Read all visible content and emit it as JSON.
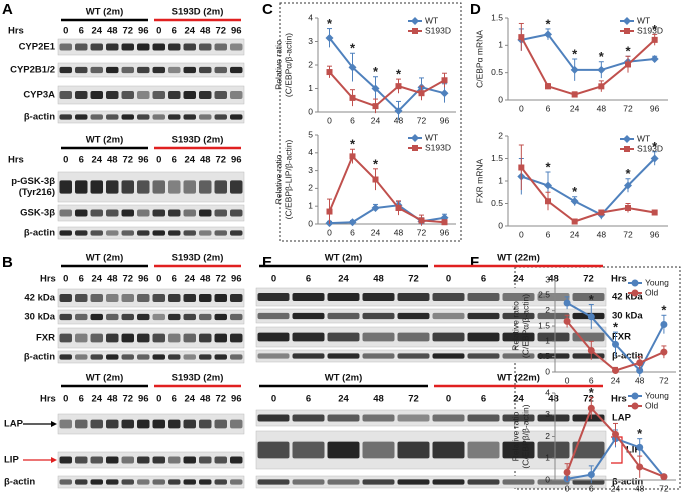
{
  "chart_data": [
    {
      "type": "line",
      "panel": "C",
      "ylabel": [
        "Relative ratio",
        "(C/EBPα/β-actin)"
      ],
      "categories": [
        "0",
        "6",
        "24",
        "48",
        "72",
        "96"
      ],
      "series": [
        {
          "name": "WT",
          "color": "#4f81bd",
          "marker": "diamond",
          "values": [
            3.15,
            1.9,
            1.0,
            0.05,
            1.05,
            0.8
          ],
          "errors": [
            0.4,
            0.6,
            0.5,
            0.4,
            0.4,
            0.4
          ]
        },
        {
          "name": "S193D",
          "color": "#c0504d",
          "marker": "square",
          "values": [
            1.7,
            0.6,
            0.25,
            1.1,
            0.8,
            1.35
          ],
          "errors": [
            0.25,
            0.35,
            0.3,
            0.3,
            0.3,
            0.3
          ]
        }
      ],
      "ylim": [
        0,
        4
      ],
      "yticks": [
        0,
        1,
        2,
        3,
        4
      ],
      "legend": "upper right",
      "significance_label": "*",
      "significant": [
        "0",
        "6",
        "24",
        "48"
      ]
    },
    {
      "type": "line",
      "panel": "C",
      "ylabel": [
        "Relative ratio",
        "(C/EBPβ-LIP/β-actin)"
      ],
      "categories": [
        "0",
        "6",
        "24",
        "48",
        "72",
        "96"
      ],
      "series": [
        {
          "name": "WT",
          "color": "#4f81bd",
          "marker": "diamond",
          "values": [
            0.05,
            0.1,
            0.9,
            1.05,
            0.15,
            0.35
          ],
          "errors": [
            0.1,
            0.1,
            0.2,
            0.2,
            0.2,
            0.2
          ]
        },
        {
          "name": "S193D",
          "color": "#c0504d",
          "marker": "square",
          "values": [
            0.7,
            3.8,
            2.5,
            0.9,
            0.2,
            0.1
          ],
          "errors": [
            0.7,
            0.4,
            0.6,
            0.4,
            0.3,
            0.1
          ]
        }
      ],
      "ylim": [
        0,
        5
      ],
      "yticks": [
        0,
        1,
        2,
        3,
        4,
        5
      ],
      "legend": "upper right",
      "significance_label": "*",
      "significant": [
        "6",
        "24"
      ]
    },
    {
      "type": "line",
      "panel": "D",
      "ylabel": [
        "C/EBPα mRNA"
      ],
      "categories": [
        "0",
        "6",
        "24",
        "48",
        "72",
        "96"
      ],
      "series": [
        {
          "name": "WT",
          "color": "#4f81bd",
          "marker": "diamond",
          "values": [
            1.1,
            1.2,
            0.55,
            0.55,
            0.7,
            0.75
          ],
          "errors": [
            0.2,
            0.1,
            0.2,
            0.15,
            0.1,
            0.05
          ]
        },
        {
          "name": "S193D",
          "color": "#c0504d",
          "marker": "square",
          "values": [
            1.15,
            0.25,
            0.1,
            0.25,
            0.65,
            1.1
          ],
          "errors": [
            0.25,
            0.05,
            0.05,
            0.1,
            0.15,
            0.1
          ]
        }
      ],
      "ylim": [
        0,
        1.5
      ],
      "yticks": [
        0,
        0.5,
        1,
        1.5
      ],
      "legend": "upper right",
      "significance_label": "*",
      "significant": [
        "6",
        "24",
        "48",
        "72",
        "96"
      ]
    },
    {
      "type": "line",
      "panel": "D",
      "ylabel": [
        "FXR mRNA"
      ],
      "categories": [
        "0",
        "6",
        "24",
        "48",
        "72",
        "96"
      ],
      "series": [
        {
          "name": "WT",
          "color": "#4f81bd",
          "marker": "diamond",
          "values": [
            1.1,
            0.9,
            0.55,
            0.25,
            0.9,
            1.5
          ],
          "errors": [
            0.4,
            0.3,
            0.1,
            0.1,
            0.15,
            0.15
          ]
        },
        {
          "name": "S193D",
          "color": "#c0504d",
          "marker": "square",
          "values": [
            1.3,
            0.55,
            0.1,
            0.3,
            0.4,
            0.3
          ],
          "errors": [
            0.5,
            0.2,
            0.05,
            0.05,
            0.1,
            0.05
          ]
        }
      ],
      "ylim": [
        0,
        2
      ],
      "yticks": [
        0,
        0.5,
        1,
        1.5,
        2
      ],
      "legend": "upper right",
      "significance_label": "*",
      "significant": [
        "6",
        "24",
        "72",
        "96"
      ]
    },
    {
      "type": "line",
      "panel": "F",
      "ylabel": [
        "Relative ratio",
        "(C/EBPα/β-actin)"
      ],
      "categories": [
        "0",
        "6",
        "24",
        "48",
        "72"
      ],
      "series": [
        {
          "name": "Young",
          "color": "#4f81bd",
          "marker": "circle",
          "values": [
            2.25,
            1.8,
            0.9,
            0.05,
            1.55
          ],
          "errors": [
            0.2,
            0.4,
            0.4,
            0.2,
            0.3
          ]
        },
        {
          "name": "Old",
          "color": "#c0504d",
          "marker": "circle",
          "values": [
            1.65,
            0.7,
            0.05,
            0.3,
            0.65
          ],
          "errors": [
            0.2,
            0.3,
            0.1,
            0.2,
            0.2
          ]
        }
      ],
      "ylim": [
        0,
        3
      ],
      "yticks": [
        0,
        0.5,
        1,
        1.5,
        2,
        2.5,
        3
      ],
      "legend": "upper right",
      "significance_label": "*",
      "significant": [
        "6",
        "24",
        "72"
      ]
    },
    {
      "type": "line",
      "panel": "F",
      "ylabel": [
        "Relative ratio",
        "(C/EBPβ/β-actin)"
      ],
      "categories": [
        "0",
        "6",
        "24",
        "48",
        "72"
      ],
      "series": [
        {
          "name": "Young",
          "color": "#4f81bd",
          "marker": "circle",
          "values": [
            0.05,
            0.25,
            1.9,
            1.5,
            0.15
          ],
          "errors": [
            0.1,
            0.4,
            0.4,
            0.4,
            0.1
          ]
        },
        {
          "name": "Old",
          "color": "#c0504d",
          "marker": "circle",
          "values": [
            0.35,
            3.3,
            2.1,
            0.6,
            0.15
          ],
          "errors": [
            0.4,
            0.5,
            0.5,
            0.5,
            0.1
          ]
        }
      ],
      "ylim": [
        0,
        4
      ],
      "yticks": [
        0,
        1,
        2,
        3,
        4
      ],
      "legend": "upper right",
      "significance_label": "*",
      "significant": [
        "6",
        "48"
      ]
    }
  ],
  "blots": {
    "letters": [
      "A",
      "B",
      "C",
      "D",
      "E",
      "F"
    ],
    "hrs": "Hrs",
    "panels": [
      {
        "groups": [
          {
            "label": "WT (2m)",
            "color": "#000000"
          },
          {
            "label": "S193D (2m)",
            "color": "#e02020"
          }
        ],
        "lanes": [
          "0",
          "6",
          "24",
          "48",
          "72",
          "96"
        ],
        "rows": [
          [
            "CYP2E1"
          ],
          [
            "CYP2B1/2"
          ],
          [
            "CYP3A"
          ],
          [
            "β-actin"
          ]
        ]
      },
      {
        "groups": [
          {
            "label": "WT (2m)",
            "color": "#000000"
          },
          {
            "label": "S193D (2m)",
            "color": "#e02020"
          }
        ],
        "lanes": [
          "0",
          "6",
          "24",
          "48",
          "72",
          "96"
        ],
        "rows": [
          [
            "p-GSK-3β",
            "(Tyr216)"
          ],
          [
            "GSK-3β"
          ],
          [
            "β-actin"
          ]
        ]
      },
      {
        "groups": [
          {
            "label": "WT (2m)",
            "color": "#000000"
          },
          {
            "label": "S193D (2m)",
            "color": "#e02020"
          }
        ],
        "lanes": [
          "0",
          "6",
          "24",
          "48",
          "72",
          "96"
        ],
        "rows": [
          [
            "42 kDa"
          ],
          [
            "30 kDa"
          ],
          [
            "FXR"
          ],
          [
            "β-actin"
          ]
        ]
      },
      {
        "groups": [
          {
            "label": "WT (2m)",
            "color": "#000000"
          },
          {
            "label": "S193D (2m)",
            "color": "#e02020"
          }
        ],
        "lanes": [
          "0",
          "6",
          "24",
          "48",
          "72",
          "96"
        ],
        "rows": [
          [
            "LAP"
          ],
          [
            "LIP"
          ],
          [
            "β-actin"
          ]
        ]
      },
      {
        "groups": [
          {
            "label": "WT (2m)",
            "color": "#000000"
          },
          {
            "label": "WT (22m)",
            "color": "#e02020"
          }
        ],
        "lanes": [
          "0",
          "6",
          "24",
          "48",
          "72"
        ],
        "rows": [
          [
            "42 kDa"
          ],
          [
            "30 kDa"
          ],
          [
            "FXR"
          ],
          [
            "β-actin"
          ]
        ]
      },
      {
        "groups": [
          {
            "label": "WT (2m)",
            "color": "#000000"
          },
          {
            "label": "WT (22m)",
            "color": "#e02020"
          }
        ],
        "lanes": [
          "0",
          "6",
          "24",
          "48",
          "72"
        ],
        "rows": [
          [
            "LAP"
          ],
          [
            "LIP"
          ],
          [
            "β-actin"
          ]
        ]
      }
    ]
  }
}
